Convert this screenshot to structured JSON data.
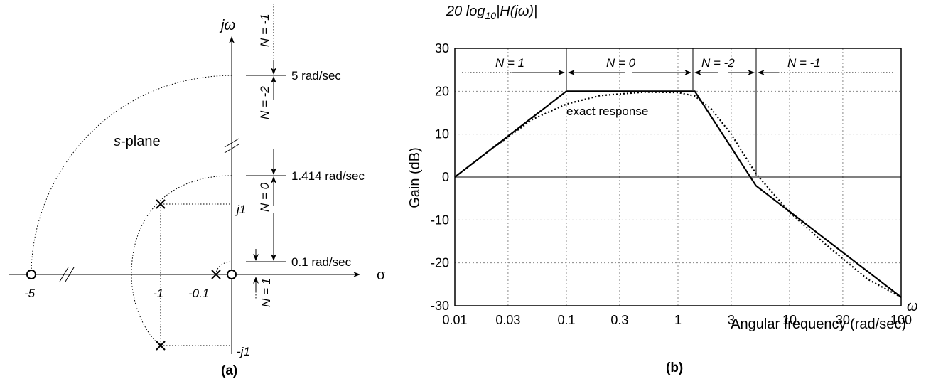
{
  "panel_a": {
    "caption": "(a)",
    "jw_label": "jω",
    "sigma_label": "σ",
    "plane_label_s": "s",
    "plane_label_rest": "-plane",
    "real_ticks": [
      "-5",
      "-1",
      "-0.1"
    ],
    "imag_ticks": [
      "j1",
      "-j1"
    ],
    "freq_labels": [
      "5 rad/sec",
      "1.414 rad/sec",
      "0.1 rad/sec"
    ],
    "region_labels": [
      "N = -1",
      "N = -2",
      "N = 0",
      "N = 1"
    ]
  },
  "panel_b": {
    "caption": "(b)",
    "title_prefix": "20 log",
    "title_sub": "10",
    "title_suffix": "|H(jω)|",
    "omega_label": "ω",
    "region_labels": [
      "N = 1",
      "N = 0",
      "N = -2",
      "N = -1"
    ],
    "annotation": "exact response"
  },
  "chart_data": {
    "type": "line",
    "xscale": "log",
    "xlabel": "Angular frequency (rad/sec)",
    "ylabel": "Gain (dB)",
    "xlim": [
      0.01,
      100
    ],
    "ylim": [
      -30,
      30
    ],
    "xticks": [
      0.01,
      0.03,
      0.1,
      0.3,
      1,
      3,
      10,
      30,
      100
    ],
    "xtick_labels": [
      "0.01",
      "0.03",
      "0.1",
      "0.3",
      "1",
      "3",
      "10",
      "30",
      "100"
    ],
    "yticks": [
      30,
      20,
      10,
      0,
      -10,
      -20,
      -30
    ],
    "ytick_labels": [
      "30",
      "20",
      "10",
      "0",
      "-10",
      "-20",
      "-30"
    ],
    "grid": true,
    "series": [
      {
        "name": "",
        "style": "solid",
        "x": [
          0.01,
          0.1,
          1.414,
          5,
          100
        ],
        "y": [
          0,
          20,
          20,
          -2,
          -28
        ]
      },
      {
        "name": "exact response",
        "style": "dotted",
        "x": [
          0.01,
          0.02,
          0.05,
          0.1,
          0.2,
          0.5,
          1,
          1.414,
          2,
          3,
          5,
          10,
          20,
          50,
          100
        ],
        "y": [
          0,
          6,
          13.5,
          17,
          19,
          19.8,
          19.7,
          18.9,
          15.8,
          10,
          0.8,
          -8.2,
          -15.2,
          -23.8,
          -28
        ]
      }
    ]
  }
}
